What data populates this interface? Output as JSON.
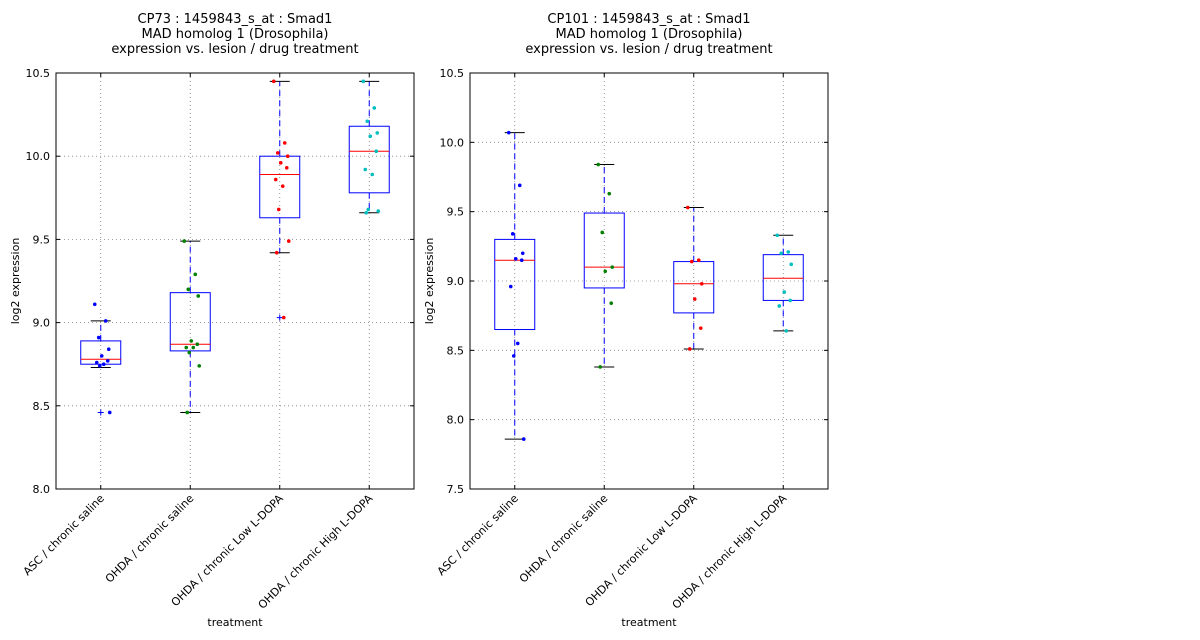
{
  "colors": {
    "box": "#0000ff",
    "median": "#ff0000",
    "grid": "#808080",
    "group_points": [
      "#0000ff",
      "#008000",
      "#ff0000",
      "#00bfbf"
    ]
  },
  "chart_data": [
    {
      "type": "box",
      "title_lines": [
        "CP73 : 1459843_s_at : Smad1",
        "MAD homolog 1 (Drosophila)",
        "expression vs. lesion / drug treatment"
      ],
      "xlabel": "treatment",
      "ylabel": "log2 expression",
      "ylim": [
        8.0,
        10.5
      ],
      "yticks": [
        "8.0",
        "8.5",
        "9.0",
        "9.5",
        "10.0",
        "10.5"
      ],
      "grid": true,
      "categories": [
        "ASC / chronic saline",
        "OHDA / chronic saline",
        "OHDA / chronic Low L-DOPA",
        "OHDA / chronic High L-DOPA"
      ],
      "boxes": [
        {
          "q1": 8.75,
          "median": 8.78,
          "q3": 8.89,
          "whisker_low": 8.73,
          "whisker_high": 9.01,
          "outliers": [
            8.46
          ]
        },
        {
          "q1": 8.83,
          "median": 8.87,
          "q3": 9.18,
          "whisker_low": 8.46,
          "whisker_high": 9.49,
          "outliers": []
        },
        {
          "q1": 9.63,
          "median": 9.89,
          "q3": 10.0,
          "whisker_low": 9.42,
          "whisker_high": 10.45,
          "outliers": [
            9.03
          ]
        },
        {
          "q1": 9.78,
          "median": 10.03,
          "q3": 10.18,
          "whisker_low": 9.66,
          "whisker_high": 10.45,
          "outliers": []
        }
      ],
      "points": [
        [
          9.11,
          9.01,
          8.91,
          8.84,
          8.8,
          8.77,
          8.76,
          8.75,
          8.74,
          8.46
        ],
        [
          9.49,
          9.29,
          9.2,
          9.16,
          8.89,
          8.87,
          8.85,
          8.85,
          8.82,
          8.74,
          8.46
        ],
        [
          10.45,
          10.08,
          10.02,
          10.0,
          9.96,
          9.93,
          9.86,
          9.82,
          9.68,
          9.49,
          9.42,
          9.03
        ],
        [
          10.45,
          10.29,
          10.21,
          10.14,
          10.12,
          10.03,
          9.92,
          9.89,
          9.68,
          9.67,
          9.66
        ]
      ]
    },
    {
      "type": "box",
      "title_lines": [
        "CP101 : 1459843_s_at : Smad1",
        "MAD homolog 1 (Drosophila)",
        "expression vs. lesion / drug treatment"
      ],
      "xlabel": "treatment",
      "ylabel": "log2 expression",
      "ylim": [
        7.5,
        10.5
      ],
      "yticks": [
        "7.5",
        "8.0",
        "8.5",
        "9.0",
        "9.5",
        "10.0",
        "10.5"
      ],
      "grid": true,
      "categories": [
        "ASC / chronic saline",
        "OHDA / chronic saline",
        "OHDA / chronic Low L-DOPA",
        "OHDA / chronic High L-DOPA"
      ],
      "boxes": [
        {
          "q1": 8.65,
          "median": 9.15,
          "q3": 9.3,
          "whisker_low": 7.86,
          "whisker_high": 10.07,
          "outliers": []
        },
        {
          "q1": 8.95,
          "median": 9.1,
          "q3": 9.49,
          "whisker_low": 8.38,
          "whisker_high": 9.84,
          "outliers": []
        },
        {
          "q1": 8.77,
          "median": 8.98,
          "q3": 9.14,
          "whisker_low": 8.51,
          "whisker_high": 9.53,
          "outliers": []
        },
        {
          "q1": 8.86,
          "median": 9.02,
          "q3": 9.19,
          "whisker_low": 8.64,
          "whisker_high": 9.33,
          "outliers": []
        }
      ],
      "points": [
        [
          10.07,
          9.69,
          9.34,
          9.2,
          9.16,
          9.15,
          8.96,
          8.55,
          8.46,
          7.86
        ],
        [
          9.84,
          9.63,
          9.35,
          9.1,
          9.07,
          8.84,
          8.38
        ],
        [
          9.53,
          9.15,
          9.14,
          8.98,
          8.87,
          8.66,
          8.51
        ],
        [
          9.33,
          9.21,
          9.2,
          9.12,
          8.92,
          8.86,
          8.82,
          8.64
        ]
      ]
    }
  ]
}
